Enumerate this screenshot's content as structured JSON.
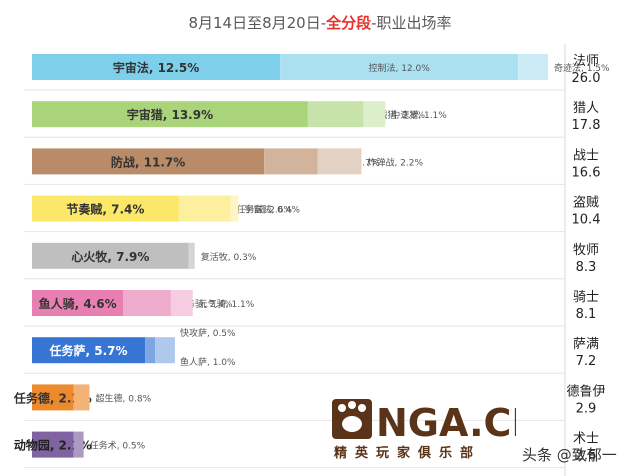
{
  "page": {
    "title_prefix": "8月14日至8月20日-",
    "title_highlight": "全分段",
    "title_suffix": "-职业出场率"
  },
  "chart_data": {
    "type": "bar",
    "title": "8月14日至8月20日-全分段-职业出场率",
    "stacked": true,
    "orientation": "horizontal",
    "xlim": [
      0,
      26.0
    ],
    "classes": [
      {
        "name": "法师",
        "total": "26.0",
        "color": "#7ecfea",
        "decks": [
          {
            "name": "宇宙法",
            "value": 12.5
          },
          {
            "name": "控制法",
            "value": 12.0
          },
          {
            "name": "奇迹法",
            "value": 1.5
          }
        ]
      },
      {
        "name": "猎人",
        "total": "17.8",
        "color": "#a9d47a",
        "decks": [
          {
            "name": "宇宙猎",
            "value": 13.9
          },
          {
            "name": "机械猎",
            "value": 2.8
          },
          {
            "name": "中速猎",
            "value": 1.1
          }
        ]
      },
      {
        "name": "战士",
        "total": "16.6",
        "color": "#b98b68",
        "decks": [
          {
            "name": "防战",
            "value": 11.7
          },
          {
            "name": "打脸战",
            "value": 2.7
          },
          {
            "name": "炸弹战",
            "value": 2.2
          }
        ]
      },
      {
        "name": "盗贼",
        "total": "10.4",
        "color": "#fbe768",
        "decks": [
          {
            "name": "节奏贼",
            "value": 7.4
          },
          {
            "name": "任务贼",
            "value": 2.6
          },
          {
            "name": "宇宙贼",
            "value": 0.4
          }
        ]
      },
      {
        "name": "牧师",
        "total": "8.3",
        "color": "#bfbfbf",
        "decks": [
          {
            "name": "心火牧",
            "value": 7.9
          },
          {
            "name": "复活牧",
            "value": 0.3
          }
        ]
      },
      {
        "name": "骑士",
        "total": "8.1",
        "color": "#e87fb2",
        "decks": [
          {
            "name": "鱼人骑",
            "value": 4.6
          },
          {
            "name": "任务骑",
            "value": 2.4
          },
          {
            "name": "元气骑",
            "value": 1.1
          }
        ]
      },
      {
        "name": "萨满",
        "total": "7.2",
        "color": "#3775d4",
        "decks": [
          {
            "name": "任务萨",
            "value": 5.7
          },
          {
            "name": "快攻萨",
            "value": 0.5
          },
          {
            "name": "鱼人萨",
            "value": 1.0
          }
        ]
      },
      {
        "name": "德鲁伊",
        "total": "2.9",
        "color": "#ec8a2d",
        "decks": [
          {
            "name": "任务德",
            "value": 2.1
          },
          {
            "name": "超生德",
            "value": 0.8
          }
        ]
      },
      {
        "name": "术士",
        "total": "2.6",
        "color": "#8064a2",
        "decks": [
          {
            "name": "动物园",
            "value": 2.1
          },
          {
            "name": "任务术",
            "value": 0.5
          }
        ]
      }
    ]
  },
  "watermark": {
    "logo_text": "NGA.CN",
    "logo_subtext": "精英玩家俱乐部",
    "credit": "头条 @致郁一"
  }
}
